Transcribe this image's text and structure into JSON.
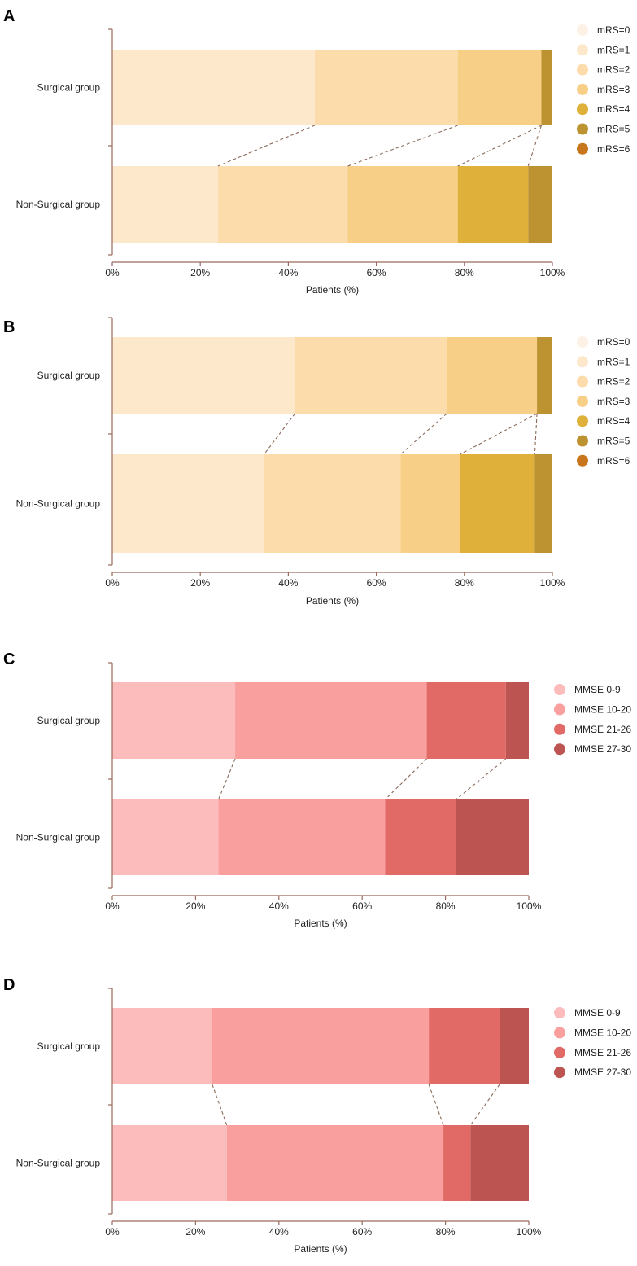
{
  "colors": {
    "axis": "#9a6b5e",
    "connector": "#8a6a5a",
    "mrs": [
      "#fdf1e6",
      "#fde8cc",
      "#fbdcaa",
      "#f8cf86",
      "#dfb13b",
      "#bd9331",
      "#c8761c"
    ],
    "mmse": [
      "#fcbcbb",
      "#f9a09e",
      "#e16a67",
      "#bc5552"
    ]
  },
  "chart_data": [
    {
      "type": "bar",
      "orientation": "horizontal-stacked",
      "panel": "A",
      "categories": [
        "Surgical  group",
        "Non-Surgical group"
      ],
      "series": [
        {
          "name": "mRS=0",
          "values": [
            0,
            0
          ]
        },
        {
          "name": "mRS=1",
          "values": [
            46,
            24
          ]
        },
        {
          "name": "mRS=2",
          "values": [
            32.5,
            29.5
          ]
        },
        {
          "name": "mRS=3",
          "values": [
            19,
            25
          ]
        },
        {
          "name": "mRS=4",
          "values": [
            0,
            16
          ]
        },
        {
          "name": "mRS=5",
          "values": [
            2.5,
            5.5
          ]
        },
        {
          "name": "mRS=6",
          "values": [
            0,
            0
          ]
        }
      ],
      "xlabel": "Patients (%)",
      "xticks": [
        "0%",
        "20%",
        "40%",
        "60%",
        "80%",
        "100%"
      ],
      "xlim": [
        0,
        100
      ],
      "legend": "top-right"
    },
    {
      "type": "bar",
      "orientation": "horizontal-stacked",
      "panel": "B",
      "categories": [
        "Surgical  group",
        "Non-Surgical group"
      ],
      "series": [
        {
          "name": "mRS=0",
          "values": [
            0,
            0
          ]
        },
        {
          "name": "mRS=1",
          "values": [
            41.5,
            34.5
          ]
        },
        {
          "name": "mRS=2",
          "values": [
            34.5,
            31
          ]
        },
        {
          "name": "mRS=3",
          "values": [
            20.5,
            13.5
          ]
        },
        {
          "name": "mRS=4",
          "values": [
            0,
            17
          ]
        },
        {
          "name": "mRS=5",
          "values": [
            3.5,
            4
          ]
        },
        {
          "name": "mRS=6",
          "values": [
            0,
            0
          ]
        }
      ],
      "xlabel": "Patients (%)",
      "xticks": [
        "0%",
        "20%",
        "40%",
        "60%",
        "80%",
        "100%"
      ],
      "xlim": [
        0,
        100
      ],
      "legend": "top-right"
    },
    {
      "type": "bar",
      "orientation": "horizontal-stacked",
      "panel": "C",
      "categories": [
        "Surgical  group",
        "Non-Surgical group"
      ],
      "series": [
        {
          "name": "MMSE 0-9",
          "values": [
            29.5,
            25.5
          ]
        },
        {
          "name": "MMSE 10-20",
          "values": [
            46,
            40
          ]
        },
        {
          "name": "MMSE 21-26",
          "values": [
            19,
            17
          ]
        },
        {
          "name": "MMSE 27-30",
          "values": [
            5.5,
            17.5
          ]
        }
      ],
      "xlabel": "Patients (%)",
      "xticks": [
        "0%",
        "20%",
        "40%",
        "60%",
        "80%",
        "100%"
      ],
      "xlim": [
        0,
        100
      ],
      "legend": "top-right"
    },
    {
      "type": "bar",
      "orientation": "horizontal-stacked",
      "panel": "D",
      "categories": [
        "Surgical  group",
        "Non-Surgical group"
      ],
      "series": [
        {
          "name": "MMSE 0-9",
          "values": [
            24,
            27.5
          ]
        },
        {
          "name": "MMSE 10-20",
          "values": [
            52,
            52
          ]
        },
        {
          "name": "MMSE 21-26",
          "values": [
            17,
            6.5
          ]
        },
        {
          "name": "MMSE 27-30",
          "values": [
            7,
            14
          ]
        }
      ],
      "xlabel": "Patients (%)",
      "xticks": [
        "0%",
        "20%",
        "40%",
        "60%",
        "80%",
        "100%"
      ],
      "xlim": [
        0,
        100
      ],
      "legend": "top-right"
    }
  ]
}
